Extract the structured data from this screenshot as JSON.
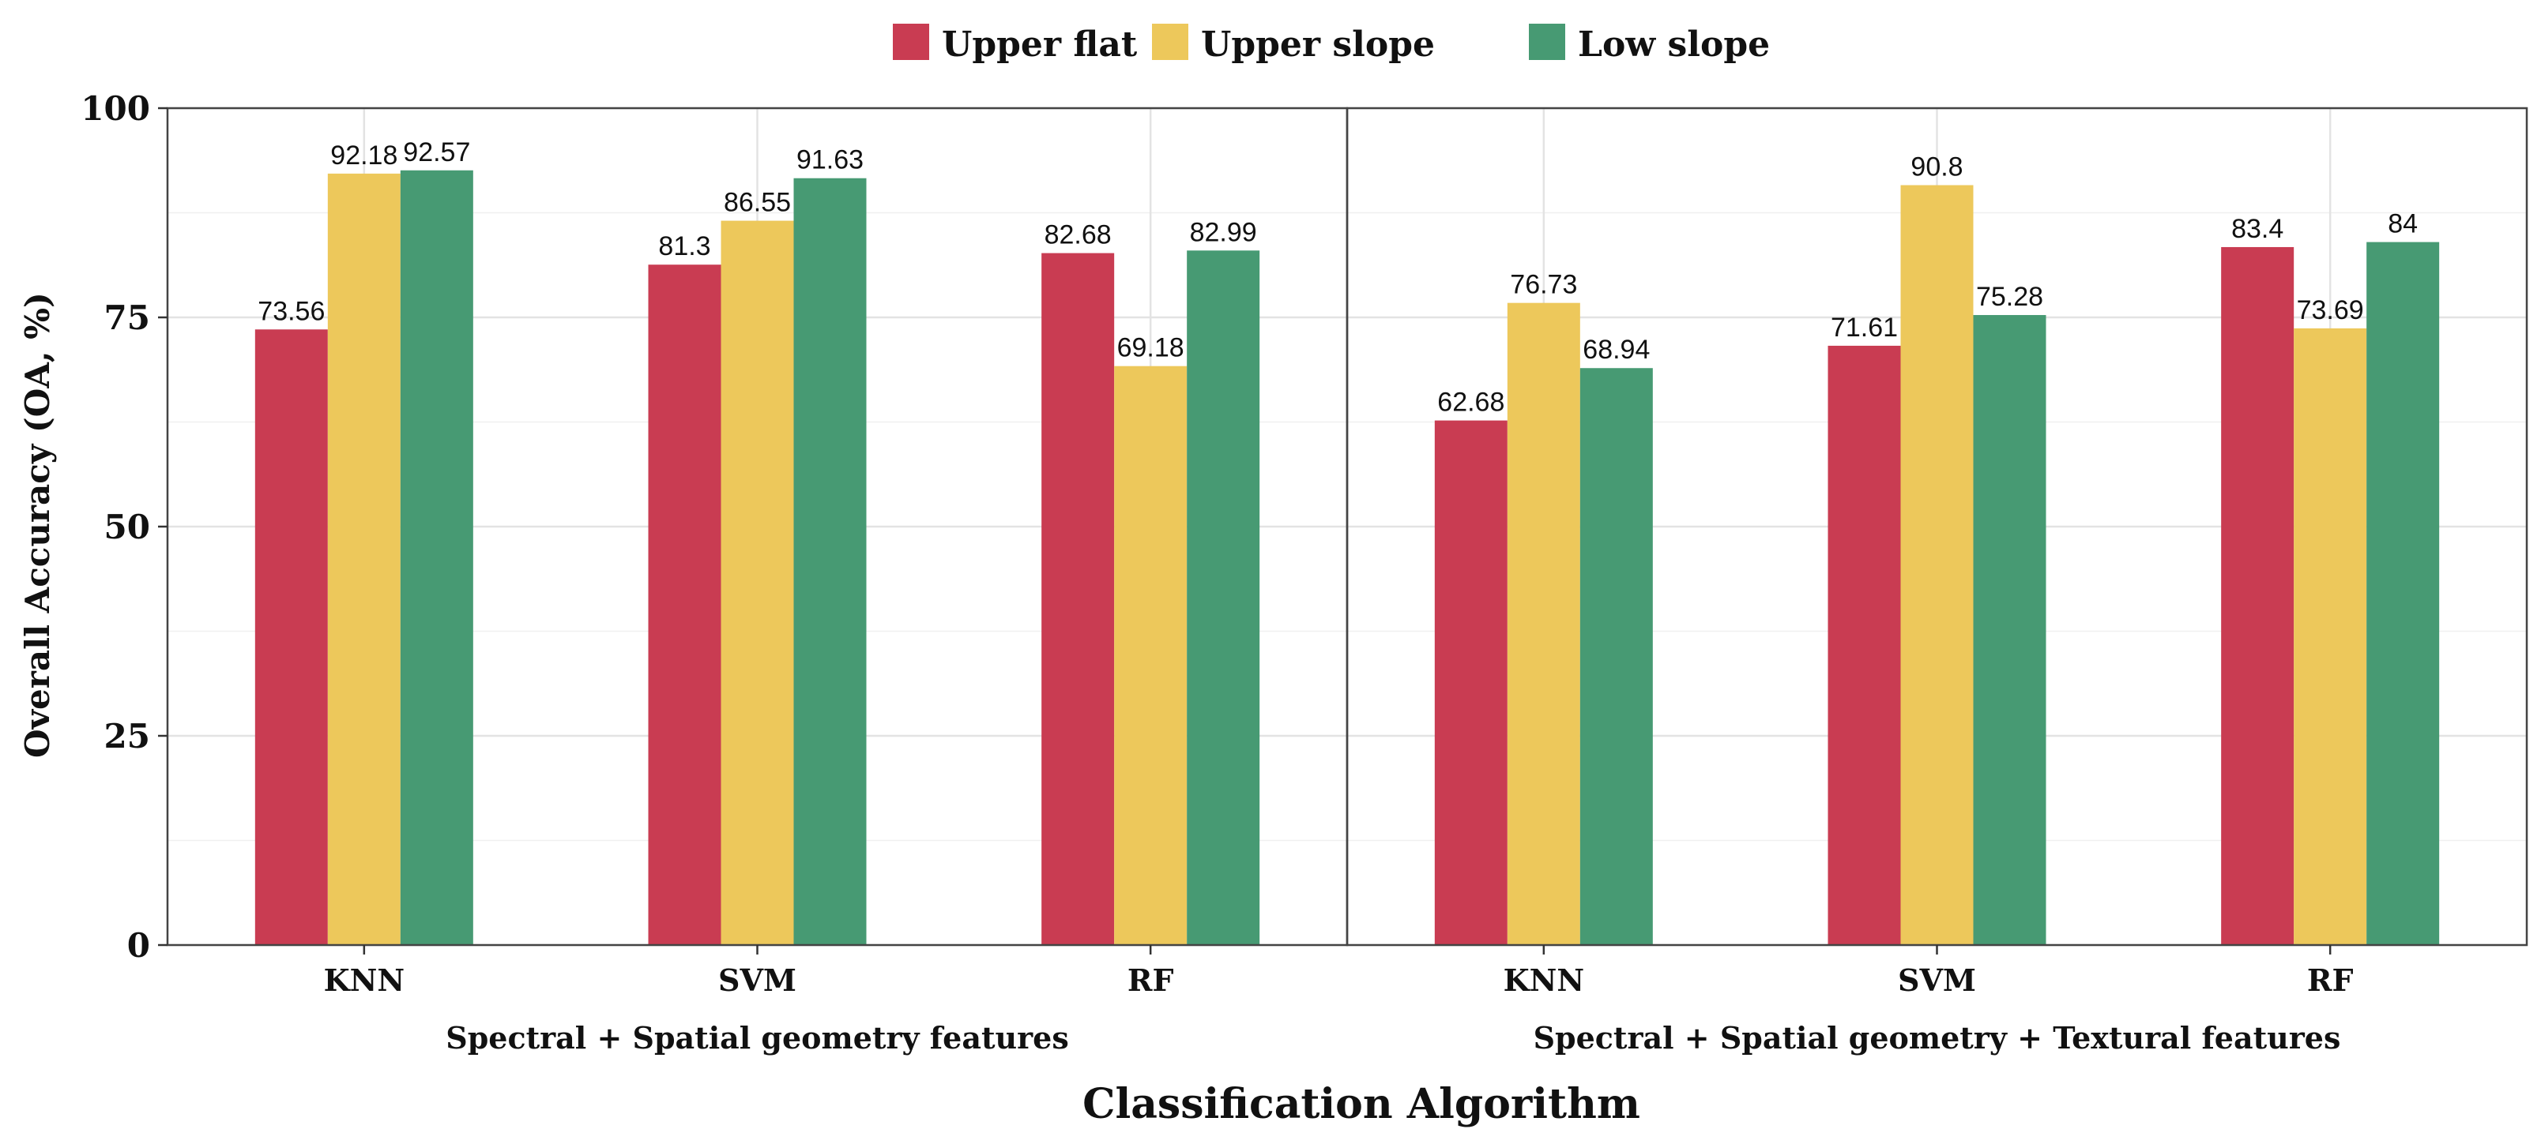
{
  "chart_data": {
    "type": "bar",
    "ylabel": "Overall Accuracy (OA, %)",
    "xlabel": "Classification Algorithm",
    "ylim": [
      0,
      100
    ],
    "yticks": [
      0,
      25,
      50,
      75,
      100
    ],
    "grid": true,
    "legend_position": "top-center",
    "series_names": [
      "Upper flat",
      "Upper slope",
      "Low slope"
    ],
    "colors": [
      "#c93c52",
      "#edc85b",
      "#479a73"
    ],
    "panels": [
      {
        "title": "Spectral + Spatial geometry features",
        "categories": [
          "KNN",
          "SVM",
          "RF"
        ],
        "series": [
          {
            "name": "Upper flat",
            "values": [
              73.56,
              81.3,
              82.68
            ]
          },
          {
            "name": "Upper slope",
            "values": [
              92.18,
              86.55,
              69.18
            ]
          },
          {
            "name": "Low slope",
            "values": [
              92.57,
              91.63,
              82.99
            ]
          }
        ]
      },
      {
        "title": "Spectral + Spatial geometry + Textural features",
        "categories": [
          "KNN",
          "SVM",
          "RF"
        ],
        "series": [
          {
            "name": "Upper flat",
            "values": [
              62.68,
              71.61,
              83.4
            ]
          },
          {
            "name": "Upper slope",
            "values": [
              76.73,
              90.8,
              73.69
            ]
          },
          {
            "name": "Low slope",
            "values": [
              68.94,
              75.28,
              84
            ]
          }
        ]
      }
    ]
  }
}
